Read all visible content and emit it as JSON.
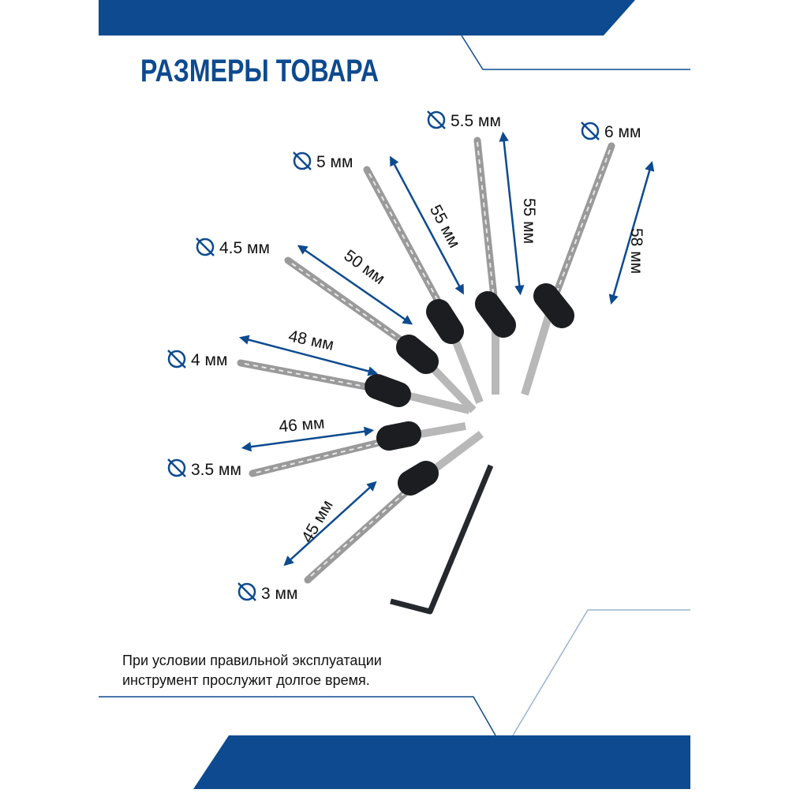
{
  "title": "РАЗМЕРЫ ТОВАРА",
  "diameters": [
    "5.5 мм",
    "6 мм",
    "5 мм",
    "4.5 мм",
    "4 мм",
    "3.5 мм",
    "3 мм"
  ],
  "lengths": [
    "55 мм",
    "55 мм",
    "58 мм",
    "50 мм",
    "48 мм",
    "46 мм",
    "45 мм"
  ],
  "note": [
    "При условии правильной эксплуатации",
    "инструмент прослужит долгое время."
  ]
}
